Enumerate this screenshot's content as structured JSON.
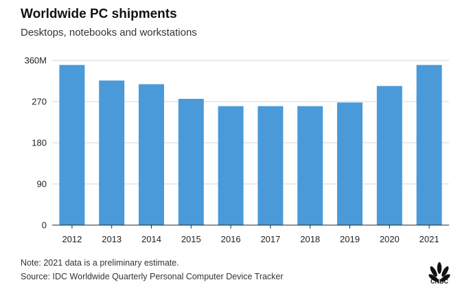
{
  "header": {
    "title": "Worldwide PC shipments",
    "subtitle": "Desktops, notebooks and workstations"
  },
  "footer": {
    "note": "Note: 2021 data is a preliminary estimate.",
    "source": "Source: IDC Worldwide Quarterly Personal Computer Device Tracker",
    "logo_text": "CNBC",
    "logo_icon": "cnbc-peacock-icon"
  },
  "colors": {
    "bar": "#4a9ad9",
    "grid": "#d6d6d6",
    "axis": "#222222"
  },
  "chart_data": {
    "type": "bar",
    "title": "Worldwide PC shipments",
    "subtitle": "Desktops, notebooks and workstations",
    "xlabel": "",
    "ylabel": "",
    "categories": [
      "2012",
      "2013",
      "2014",
      "2015",
      "2016",
      "2017",
      "2018",
      "2019",
      "2020",
      "2021"
    ],
    "values": [
      350,
      316,
      308,
      276,
      260,
      260,
      260,
      268,
      304,
      350
    ],
    "ylim": [
      0,
      360
    ],
    "yticks": [
      0,
      90,
      180,
      270,
      360
    ],
    "ytick_labels": [
      "0",
      "90",
      "180",
      "270",
      "360M"
    ],
    "grid": true,
    "legend": "none"
  }
}
